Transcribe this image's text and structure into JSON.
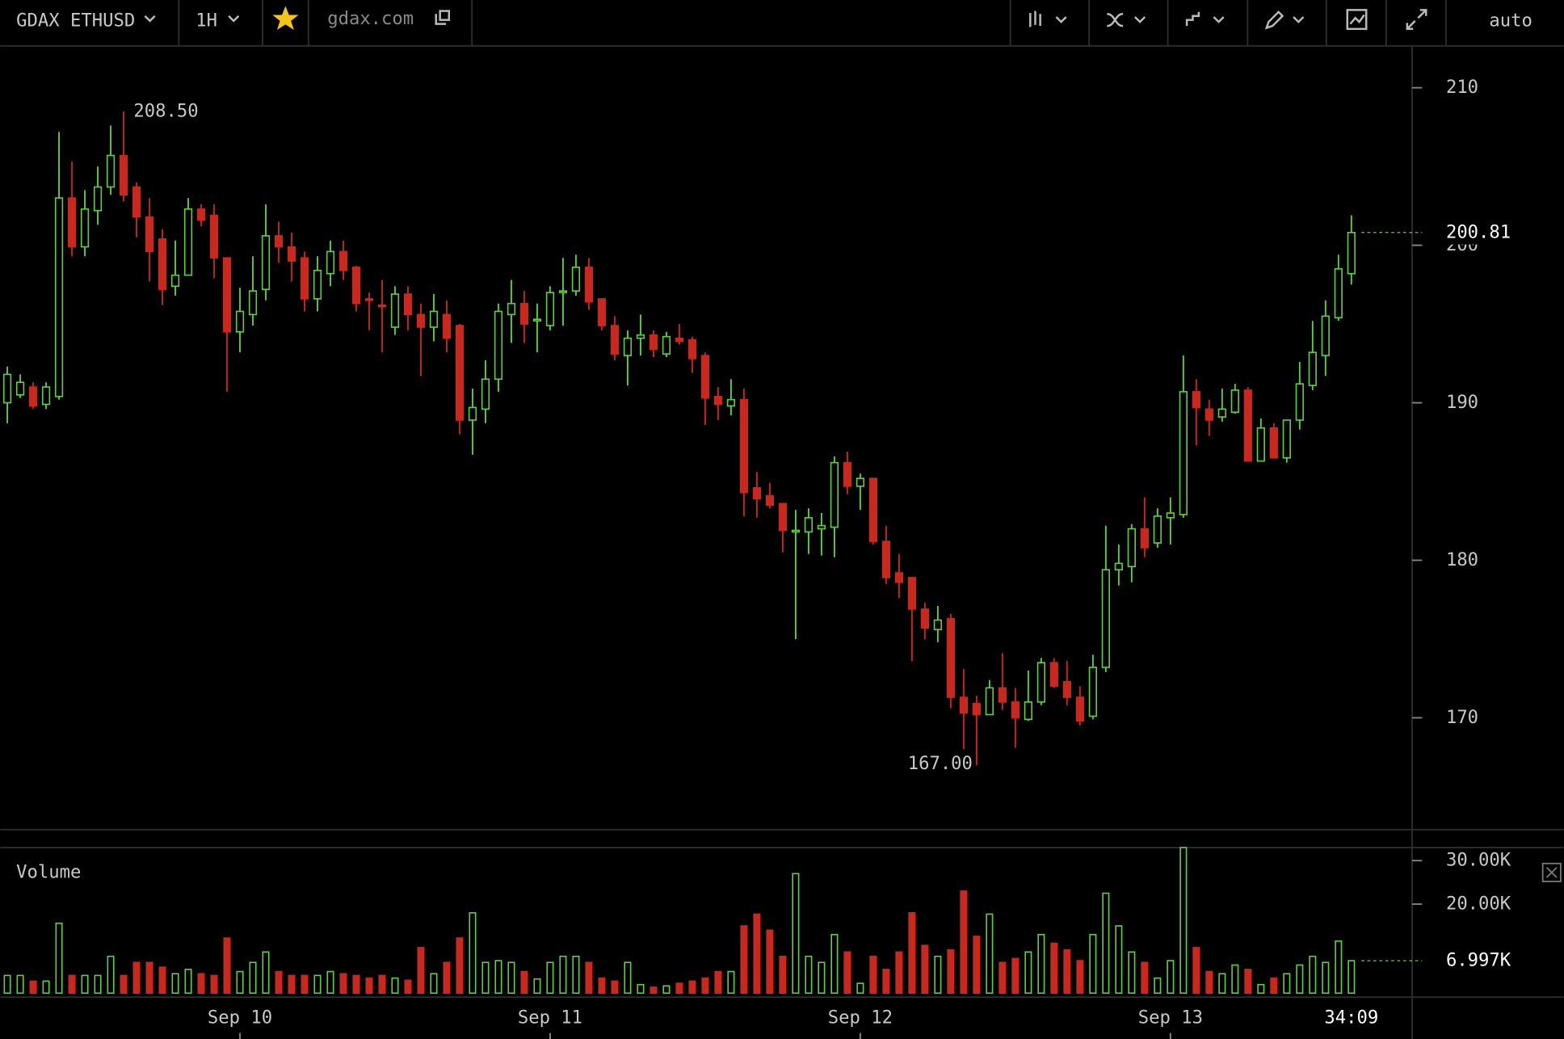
{
  "toolbar": {
    "symbol": "GDAX ETHUSD",
    "interval": "1H",
    "site": "gdax.com",
    "scale": "auto"
  },
  "chart_data": [
    {
      "type": "candlestick",
      "up_color": "#5fd13f",
      "down_color": "#c8281e",
      "xlim": [
        -0.54,
        108.7
      ],
      "xticks": [
        {
          "value": 18,
          "label": "Sep 10"
        },
        {
          "value": 42,
          "label": "Sep 11"
        },
        {
          "value": 66,
          "label": "Sep 12"
        },
        {
          "value": 90,
          "label": "Sep 13"
        }
      ],
      "ylim": [
        162.9,
        212.66
      ],
      "yticks": [
        170,
        180,
        190,
        200,
        210
      ],
      "open": [
        190.0,
        190.5,
        191.0,
        189.9,
        190.4,
        203.0,
        199.9,
        202.2,
        203.7,
        205.7,
        203.7,
        201.8,
        200.4,
        197.4,
        198.1,
        202.3,
        201.9,
        199.2,
        194.5,
        195.6,
        197.2,
        200.6,
        199.9,
        199.2,
        196.6,
        198.2,
        199.6,
        198.6,
        196.6,
        196.2,
        194.8,
        196.9,
        195.6,
        194.8,
        195.6,
        194.9,
        188.9,
        189.6,
        191.5,
        195.6,
        196.3,
        195.2,
        194.9,
        197.0,
        197.1,
        198.6,
        196.6,
        194.9,
        193.0,
        194.1,
        194.3,
        193.1,
        194.1,
        194.0,
        193.0,
        190.4,
        189.8,
        190.2,
        184.6,
        184.1,
        183.6,
        181.8,
        181.8,
        182.0,
        182.1,
        186.2,
        184.7,
        185.2,
        181.2,
        179.2,
        178.9,
        176.9,
        175.6,
        176.3,
        171.3,
        170.9,
        170.2,
        171.9,
        171.0,
        169.9,
        171.0,
        173.5,
        172.3,
        171.3,
        170.1,
        173.2,
        179.4,
        179.6,
        182.0,
        181.1,
        182.7,
        182.9,
        190.7,
        189.6,
        189.1,
        189.4,
        190.8,
        186.3,
        188.4,
        186.5,
        188.9,
        191.1,
        193.0,
        195.4,
        198.2
      ],
      "high": [
        192.3,
        191.8,
        191.3,
        191.3,
        207.2,
        205.3,
        203.5,
        205.0,
        207.6,
        208.5,
        204.0,
        203.0,
        201.0,
        200.3,
        203.0,
        202.6,
        202.6,
        199.2,
        197.3,
        199.3,
        202.6,
        201.5,
        200.8,
        199.6,
        199.3,
        200.3,
        200.3,
        198.7,
        197.0,
        197.8,
        197.4,
        197.4,
        196.3,
        196.9,
        196.5,
        195.0,
        190.9,
        192.7,
        196.3,
        197.8,
        197.1,
        196.3,
        197.4,
        199.2,
        199.4,
        199.2,
        196.6,
        195.5,
        194.6,
        195.6,
        194.6,
        194.5,
        195.0,
        194.2,
        193.2,
        191.0,
        191.5,
        190.9,
        185.6,
        184.9,
        183.6,
        183.2,
        183.3,
        183.0,
        186.6,
        186.9,
        185.5,
        185.2,
        182.2,
        180.4,
        178.9,
        177.3,
        177.1,
        176.6,
        173.1,
        171.4,
        172.4,
        174.1,
        171.9,
        173.0,
        173.8,
        173.8,
        173.6,
        172.0,
        174.0,
        182.2,
        181.0,
        182.3,
        184.0,
        183.3,
        184.0,
        193.0,
        191.5,
        190.2,
        190.9,
        191.2,
        191.0,
        189.0,
        188.7,
        188.9,
        192.6,
        195.2,
        196.5,
        199.4,
        201.9
      ],
      "low": [
        188.7,
        190.3,
        189.6,
        189.6,
        190.2,
        199.3,
        199.3,
        201.3,
        203.2,
        202.8,
        200.5,
        197.7,
        196.2,
        196.8,
        198.1,
        201.2,
        197.9,
        190.7,
        193.2,
        194.9,
        196.5,
        198.9,
        197.7,
        195.8,
        195.8,
        197.4,
        197.8,
        195.8,
        194.6,
        193.2,
        194.3,
        194.6,
        191.7,
        193.9,
        193.2,
        188.0,
        186.7,
        188.7,
        190.7,
        193.8,
        193.8,
        193.2,
        194.6,
        194.9,
        196.8,
        195.9,
        194.6,
        192.7,
        191.1,
        193.0,
        192.9,
        192.9,
        193.7,
        191.9,
        188.6,
        188.9,
        189.2,
        182.8,
        182.7,
        183.3,
        180.5,
        175.0,
        180.4,
        180.3,
        180.2,
        184.2,
        183.2,
        181.0,
        178.5,
        177.6,
        173.6,
        175.0,
        174.8,
        170.6,
        168.0,
        167.0,
        170.2,
        170.5,
        168.1,
        169.8,
        170.8,
        171.9,
        170.8,
        169.5,
        169.9,
        172.9,
        178.4,
        178.6,
        180.2,
        180.8,
        181.0,
        182.7,
        187.3,
        187.9,
        188.8,
        189.3,
        186.3,
        186.3,
        186.5,
        186.2,
        188.3,
        190.8,
        191.7,
        195.2,
        197.5
      ],
      "close": [
        191.8,
        191.3,
        189.8,
        191.0,
        203.0,
        199.9,
        202.3,
        203.7,
        205.7,
        203.2,
        201.8,
        199.6,
        197.2,
        198.1,
        202.3,
        201.6,
        199.2,
        194.5,
        195.8,
        197.1,
        200.6,
        199.9,
        199.0,
        196.6,
        198.4,
        199.6,
        198.4,
        196.3,
        196.5,
        196.1,
        196.9,
        195.6,
        194.8,
        195.8,
        194.1,
        188.9,
        189.7,
        191.5,
        195.8,
        196.3,
        195.0,
        195.3,
        197.0,
        197.1,
        198.6,
        196.4,
        194.9,
        193.1,
        194.1,
        194.3,
        193.4,
        194.2,
        193.9,
        192.8,
        190.3,
        189.9,
        190.2,
        184.3,
        183.9,
        183.5,
        181.9,
        181.9,
        182.7,
        182.2,
        186.2,
        184.7,
        185.2,
        181.2,
        178.9,
        178.6,
        176.9,
        175.7,
        176.2,
        171.3,
        170.3,
        170.2,
        171.9,
        171.0,
        170.0,
        171.0,
        173.5,
        172.0,
        171.3,
        169.8,
        173.2,
        179.4,
        179.8,
        182.0,
        180.8,
        182.8,
        183.0,
        190.7,
        189.7,
        188.9,
        189.6,
        190.8,
        186.3,
        188.4,
        186.5,
        188.9,
        191.2,
        193.2,
        195.5,
        198.5,
        200.81
      ],
      "annotations": [
        {
          "x": 9,
          "value": 208.5,
          "label": "208.50"
        },
        {
          "x": 75,
          "value": 167.0,
          "label": "167.00"
        }
      ],
      "last_value": {
        "value": 200.81,
        "label": "200.81"
      },
      "countdown": "34:09"
    },
    {
      "type": "bar",
      "title": "Volume",
      "ylim": [
        0,
        33
      ],
      "yticks": [
        {
          "value": 20,
          "label": "20.00K"
        },
        {
          "value": 30,
          "label": "30.00K"
        }
      ],
      "values": [
        3.6,
        3.6,
        2.3,
        2.3,
        15.6,
        3.6,
        3.6,
        3.6,
        8.0,
        3.6,
        6.6,
        6.6,
        5.5,
        4.0,
        5.0,
        4.0,
        3.6,
        12.2,
        4.5,
        6.6,
        9.0,
        4.5,
        3.6,
        3.6,
        3.6,
        4.5,
        4.0,
        3.6,
        3.0,
        3.6,
        3.0,
        2.5,
        10.0,
        4.0,
        6.6,
        12.2,
        18.0,
        6.6,
        7.0,
        6.6,
        4.5,
        2.8,
        6.6,
        8.0,
        8.0,
        6.6,
        3.0,
        2.3,
        6.6,
        1.5,
        0.9,
        1.2,
        1.8,
        2.3,
        3.0,
        4.5,
        4.5,
        15.0,
        17.7,
        14.0,
        8.0,
        27.0,
        8.0,
        6.6,
        13.0,
        9.0,
        1.8,
        8.0,
        5.0,
        9.0,
        18.0,
        10.5,
        8.0,
        9.5,
        23.0,
        12.6,
        17.7,
        6.6,
        7.5,
        9.0,
        13.0,
        11.0,
        9.5,
        7.0,
        13.0,
        22.5,
        15.0,
        9.0,
        6.6,
        3.0,
        7.0,
        33.0,
        10.0,
        4.5,
        4.0,
        6.0,
        5.0,
        1.5,
        3.0,
        4.0,
        6.0,
        8.0,
        6.6,
        11.5,
        6.997
      ],
      "last_value": {
        "value": 6.997,
        "label": "6.997K"
      }
    }
  ]
}
